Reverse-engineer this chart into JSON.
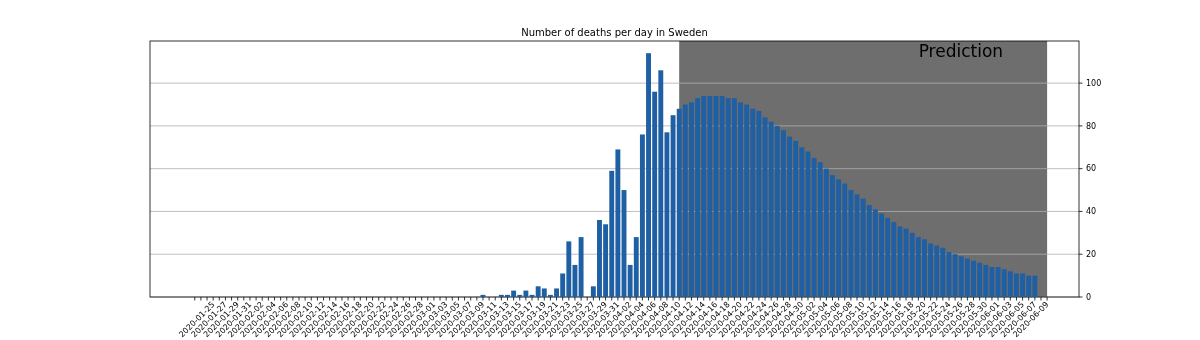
{
  "chart_data": {
    "type": "bar",
    "title": "Number of deaths per day in Sweden",
    "categories": [
      null,
      null,
      null,
      "2020-01-25",
      null,
      "2020-01-27",
      null,
      "2020-01-29",
      null,
      "2020-01-31",
      null,
      "2020-02-02",
      null,
      "2020-02-04",
      null,
      "2020-02-06",
      null,
      "2020-02-08",
      null,
      "2020-02-10",
      null,
      "2020-02-12",
      null,
      "2020-02-14",
      null,
      "2020-02-16",
      null,
      "2020-02-18",
      null,
      "2020-02-20",
      null,
      "2020-02-22",
      null,
      "2020-02-24",
      null,
      "2020-02-26",
      null,
      "2020-02-28",
      null,
      "2020-03-01",
      null,
      "2020-03-03",
      null,
      "2020-03-05",
      null,
      "2020-03-07",
      null,
      "2020-03-09",
      null,
      "2020-03-11",
      null,
      "2020-03-13",
      null,
      "2020-03-15",
      null,
      "2020-03-17",
      null,
      "2020-03-19",
      null,
      "2020-03-21",
      null,
      "2020-03-23",
      null,
      "2020-03-25",
      null,
      "2020-03-27",
      null,
      "2020-03-29",
      null,
      "2020-03-31",
      null,
      "2020-04-02",
      null,
      "2020-04-04",
      null,
      "2020-04-06",
      null,
      "2020-04-08",
      null,
      "2020-04-10",
      null,
      "2020-04-12",
      null,
      "2020-04-14",
      null,
      "2020-04-16",
      null,
      "2020-04-18",
      null,
      "2020-04-20",
      null,
      "2020-04-22",
      null,
      "2020-04-24",
      null,
      "2020-04-26",
      null,
      "2020-04-28",
      null,
      "2020-04-30",
      null,
      "2020-05-02",
      null,
      "2020-05-04",
      null,
      "2020-05-06",
      null,
      "2020-05-08",
      null,
      "2020-05-10",
      null,
      "2020-05-12",
      null,
      "2020-05-14",
      null,
      "2020-05-16",
      null,
      "2020-05-18",
      null,
      "2020-05-20",
      null,
      "2020-05-22",
      null,
      "2020-05-24",
      null,
      "2020-05-26",
      null,
      "2020-05-28",
      null,
      "2020-05-30",
      null,
      "2020-06-01",
      null,
      "2020-06-03",
      null,
      "2020-06-05",
      null,
      "2020-06-07",
      null,
      "2020-06-09"
    ],
    "values": [
      0,
      0,
      0,
      0,
      0,
      0,
      0,
      0,
      0,
      0,
      0,
      0,
      0,
      0,
      0,
      0,
      0,
      0,
      0,
      0,
      0,
      0,
      0,
      0,
      0,
      0,
      0,
      0,
      0,
      0,
      0,
      0,
      0,
      0,
      0,
      0,
      0,
      0,
      0,
      0,
      0,
      0,
      0,
      0,
      0,
      0,
      0,
      1,
      0,
      0,
      1,
      1,
      3,
      1,
      3,
      1,
      5,
      4,
      1,
      4,
      11,
      26,
      15,
      28,
      0,
      5,
      36,
      34,
      59,
      69,
      50,
      15,
      28,
      76,
      114,
      96,
      106,
      77,
      85,
      88,
      90,
      91,
      93,
      94,
      94,
      94,
      94,
      93,
      93,
      91,
      90,
      88,
      87,
      84,
      82,
      80,
      78,
      75,
      73,
      70,
      68,
      65,
      63,
      60,
      57,
      55,
      53,
      50,
      48,
      46,
      43,
      41,
      39,
      37,
      35,
      33,
      32,
      30,
      28,
      27,
      25,
      24,
      23,
      21,
      20,
      19,
      18,
      17,
      16,
      15,
      14,
      14,
      13,
      12,
      11,
      11,
      10,
      10,
      null,
      null
    ],
    "color": "#1f5fa3",
    "ylim": [
      0,
      119.7
    ],
    "yticks": [
      0,
      20,
      40,
      60,
      80,
      100
    ],
    "grid": "y",
    "bands": [
      {
        "axis": "x",
        "from": "2020-04-10",
        "to": "2020-06-09",
        "label": "Prediction",
        "color": "#6e6e6e"
      }
    ]
  }
}
